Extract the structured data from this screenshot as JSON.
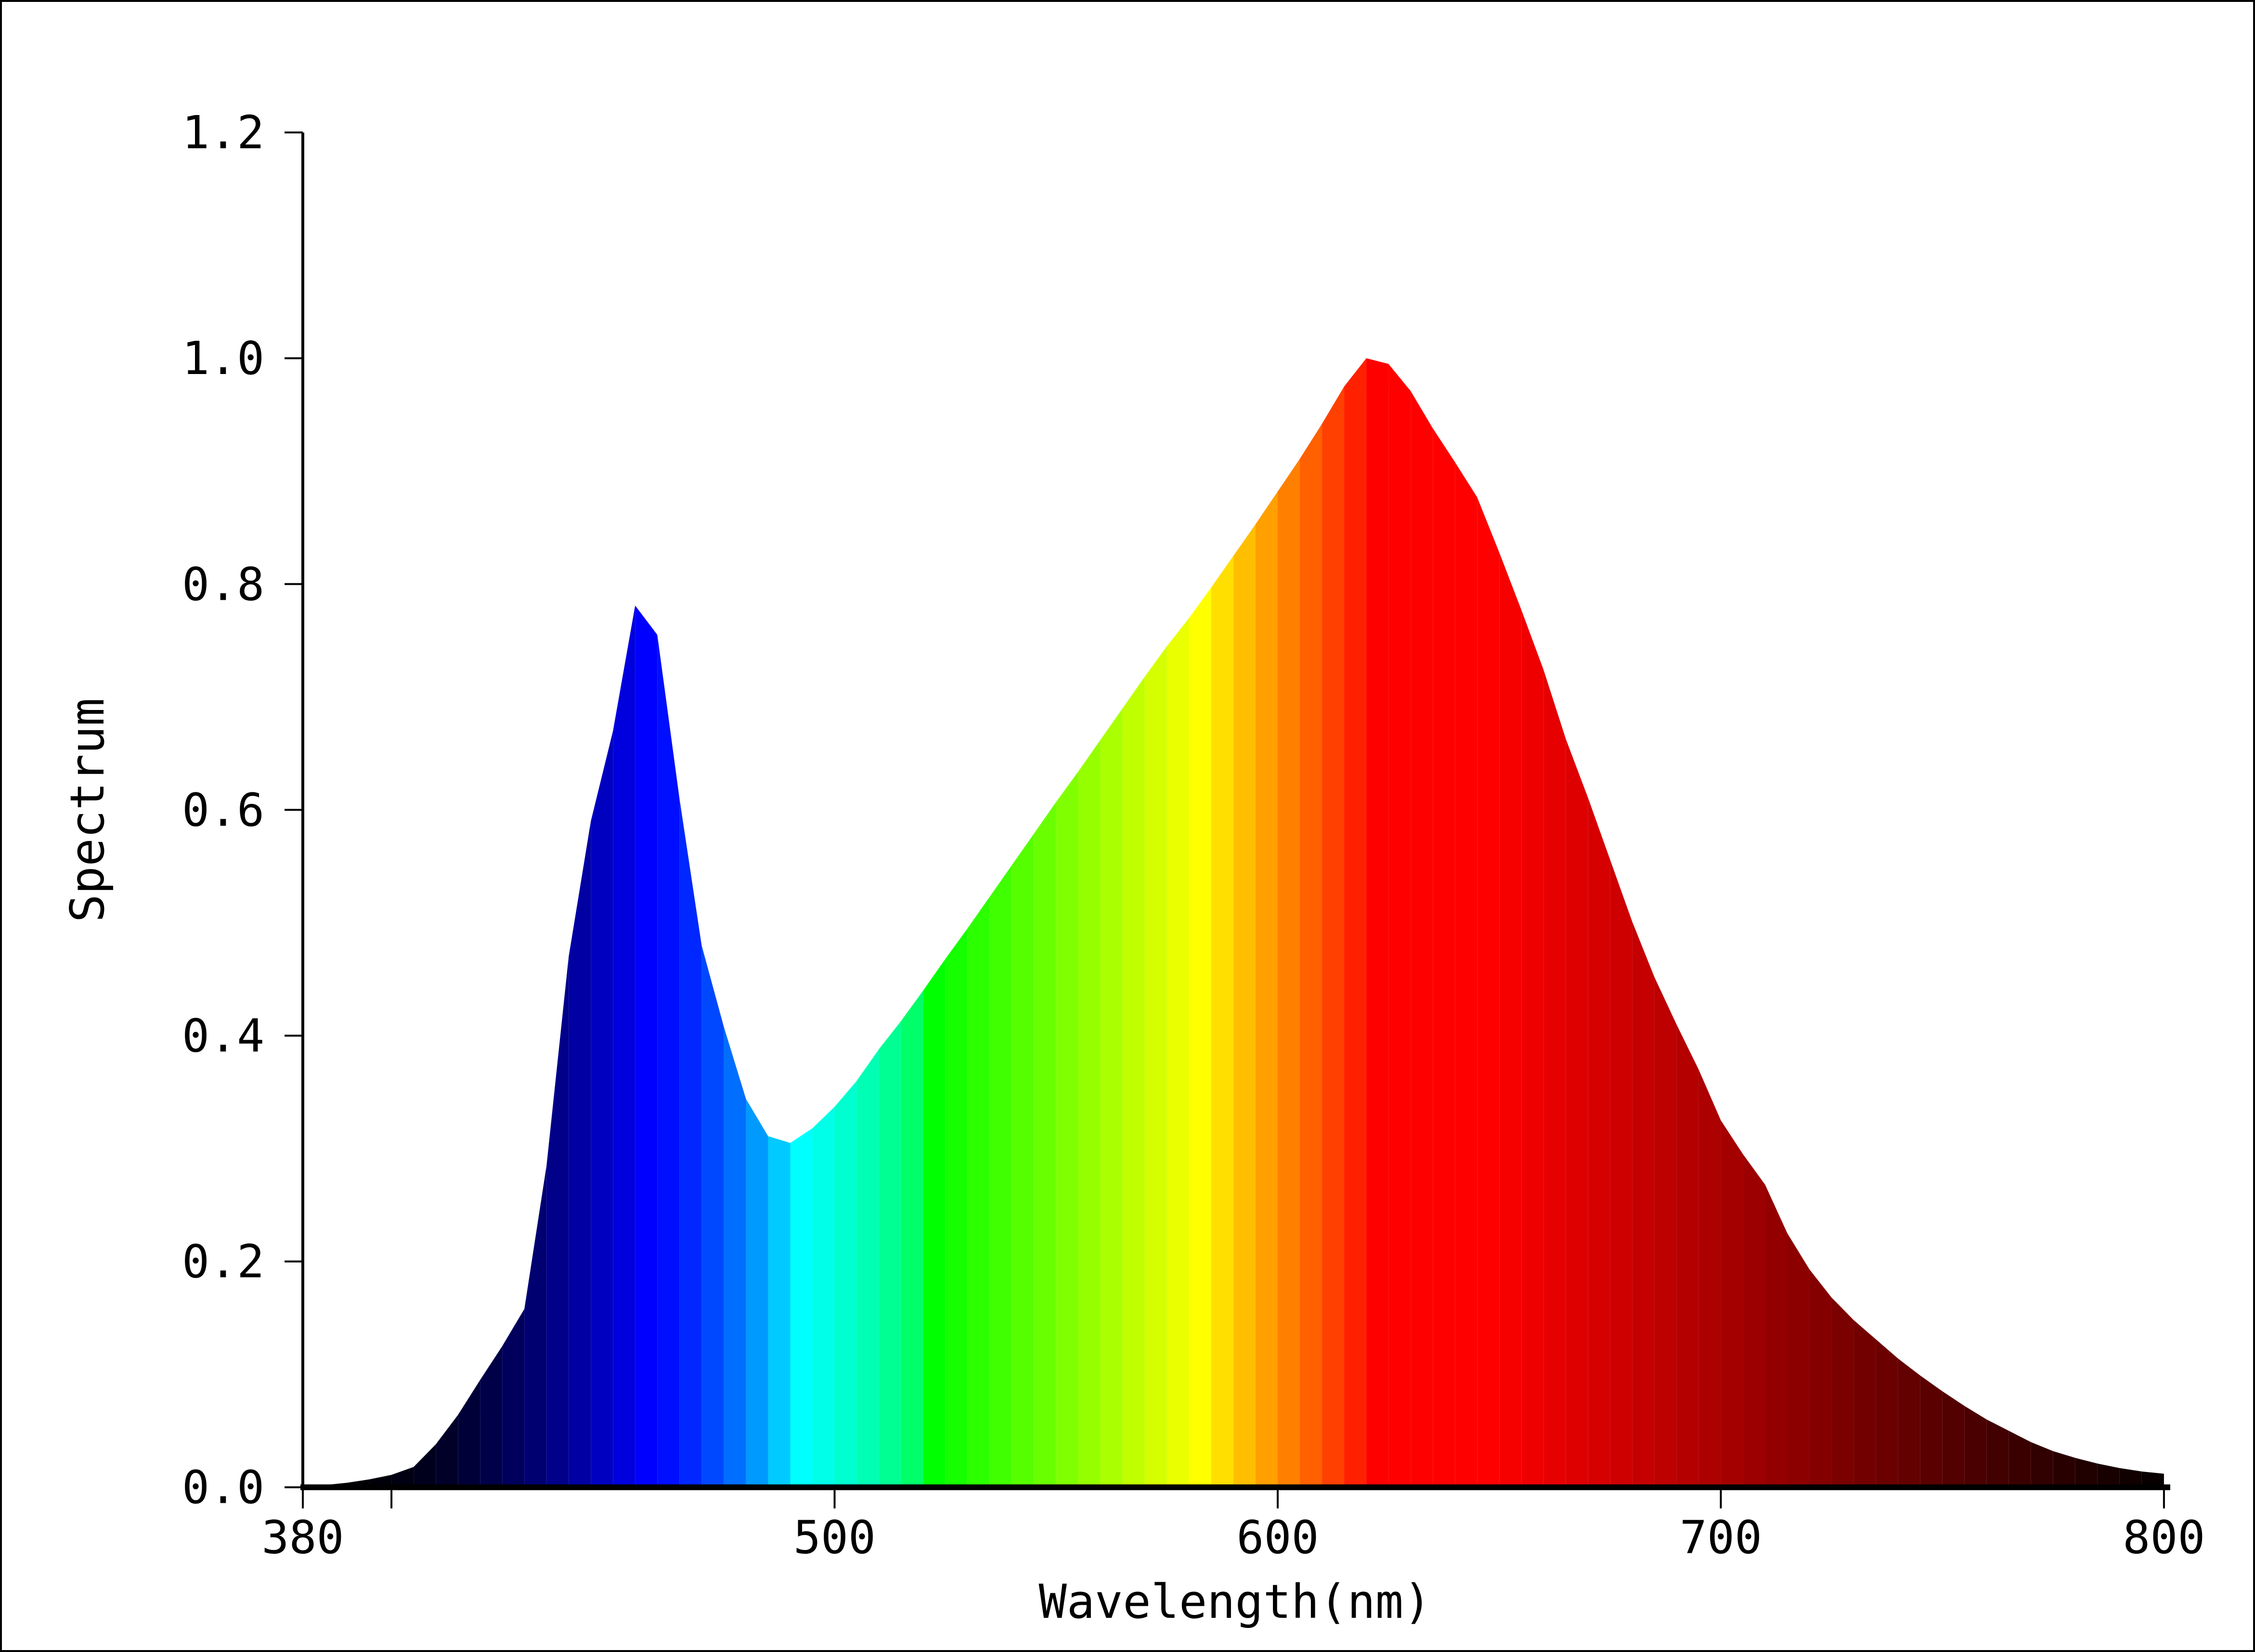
{
  "figure": {
    "background": "#ffffff",
    "frame_color": "#000000",
    "axis_color": "#000000"
  },
  "axes": {
    "x_title": "Wavelength(nm)",
    "y_title": "Spectrum",
    "x_ticks": [
      {
        "pos": 380,
        "label": "380"
      },
      {
        "pos": 400,
        "label": ""
      },
      {
        "pos": 500,
        "label": "500"
      },
      {
        "pos": 600,
        "label": "600"
      },
      {
        "pos": 700,
        "label": "700"
      },
      {
        "pos": 800,
        "label": "800"
      }
    ],
    "y_ticks": [
      {
        "pos": 0.0,
        "label": "0.0"
      },
      {
        "pos": 0.2,
        "label": "0.2"
      },
      {
        "pos": 0.4,
        "label": "0.4"
      },
      {
        "pos": 0.6,
        "label": "0.6"
      },
      {
        "pos": 0.8,
        "label": "0.8"
      },
      {
        "pos": 1.0,
        "label": "1.0"
      },
      {
        "pos": 1.2,
        "label": "1.2"
      }
    ]
  },
  "chart_data": {
    "type": "area",
    "title": "",
    "xlabel": "Wavelength(nm)",
    "ylabel": "Spectrum",
    "xlim": [
      380,
      800
    ],
    "ylim": [
      0,
      1.2
    ],
    "grid": false,
    "legend": "none",
    "sample_step_nm": 5,
    "x": [
      380,
      385,
      390,
      395,
      400,
      405,
      410,
      415,
      420,
      425,
      430,
      435,
      440,
      445,
      450,
      455,
      460,
      465,
      470,
      475,
      480,
      485,
      490,
      495,
      500,
      505,
      510,
      515,
      520,
      525,
      530,
      535,
      540,
      545,
      550,
      555,
      560,
      565,
      570,
      575,
      580,
      585,
      590,
      595,
      600,
      605,
      610,
      615,
      620,
      625,
      630,
      635,
      640,
      645,
      650,
      655,
      660,
      665,
      670,
      675,
      680,
      685,
      690,
      695,
      700,
      705,
      710,
      715,
      720,
      725,
      730,
      735,
      740,
      745,
      750,
      755,
      760,
      765,
      770,
      775,
      780,
      785,
      790,
      795,
      800
    ],
    "values": [
      0.001,
      0.002,
      0.004,
      0.007,
      0.011,
      0.018,
      0.038,
      0.064,
      0.095,
      0.125,
      0.158,
      0.285,
      0.47,
      0.59,
      0.67,
      0.781,
      0.755,
      0.61,
      0.48,
      0.408,
      0.344,
      0.311,
      0.305,
      0.318,
      0.337,
      0.36,
      0.388,
      0.413,
      0.44,
      0.468,
      0.495,
      0.523,
      0.551,
      0.579,
      0.607,
      0.634,
      0.662,
      0.69,
      0.718,
      0.745,
      0.77,
      0.797,
      0.825,
      0.853,
      0.882,
      0.911,
      0.942,
      0.975,
      1.0,
      0.995,
      0.971,
      0.938,
      0.908,
      0.877,
      0.828,
      0.777,
      0.724,
      0.663,
      0.611,
      0.556,
      0.501,
      0.452,
      0.41,
      0.37,
      0.325,
      0.295,
      0.268,
      0.225,
      0.193,
      0.168,
      0.148,
      0.131,
      0.114,
      0.099,
      0.085,
      0.072,
      0.06,
      0.05,
      0.04,
      0.032,
      0.026,
      0.021,
      0.017,
      0.014,
      0.012
    ],
    "strip_colors": [
      "#000000",
      "#000001",
      "#000005",
      "#00000a",
      "#000012",
      "#00001c",
      "#000029",
      "#000038",
      "#000049",
      "#00005c",
      "#000071",
      "#000089",
      "#0000a3",
      "#0000c0",
      "#0000de",
      "#0000ff",
      "#000eff",
      "#0027ff",
      "#0048ff",
      "#006eff",
      "#009aff",
      "#00caff",
      "#00ffff",
      "#00ffe9",
      "#00ffd0",
      "#00ffb4",
      "#00ff93",
      "#00ff68",
      "#00ff00",
      "#15ff00",
      "#2bff00",
      "#40ff00",
      "#55ff00",
      "#6aff00",
      "#80ff00",
      "#95ff00",
      "#aaff00",
      "#bfff00",
      "#d5ff00",
      "#eaff00",
      "#ffff00",
      "#ffdf00",
      "#ffbf00",
      "#ff9f00",
      "#ff8000",
      "#ff6000",
      "#ff4000",
      "#ff2000",
      "#ff0000",
      "#ff0000",
      "#ff0000",
      "#ff0000",
      "#ff0000",
      "#ff0000",
      "#f70000",
      "#ef0000",
      "#e60000",
      "#de0000",
      "#d60000",
      "#ce0000",
      "#c50000",
      "#bd0000",
      "#b50000",
      "#ad0000",
      "#a50000",
      "#9c0000",
      "#940000",
      "#8c0000",
      "#840000",
      "#7b0000",
      "#730000",
      "#6b0000",
      "#630000",
      "#5a0000",
      "#520000",
      "#4a0000",
      "#420000",
      "#3a0000",
      "#310000",
      "#290000",
      "#210000",
      "#190000",
      "#100000",
      "#080000"
    ],
    "peaks": [
      {
        "wavelength_nm": 455,
        "value": 0.781
      },
      {
        "wavelength_nm": 620,
        "value": 1.0
      }
    ],
    "valley": {
      "wavelength_nm": 490,
      "value": 0.305
    }
  }
}
